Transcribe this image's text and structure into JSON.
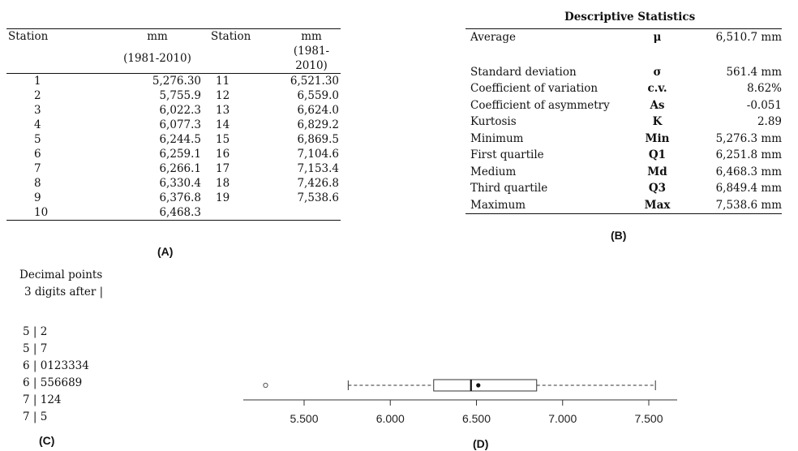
{
  "panel_a": {
    "label": "(A)",
    "headers": {
      "station": "Station",
      "mm": "mm",
      "period": "(1981-2010)"
    },
    "left_rows": [
      {
        "station": "1",
        "mm": "5,276.30"
      },
      {
        "station": "2",
        "mm": "5,755.9"
      },
      {
        "station": "3",
        "mm": "6,022.3"
      },
      {
        "station": "4",
        "mm": "6,077.3"
      },
      {
        "station": "5",
        "mm": "6,244.5"
      },
      {
        "station": "6",
        "mm": "6,259.1"
      },
      {
        "station": "7",
        "mm": "6,266.1"
      },
      {
        "station": "8",
        "mm": "6,330.4"
      },
      {
        "station": "9",
        "mm": "6,376.8"
      },
      {
        "station": "10",
        "mm": "6,468.3"
      }
    ],
    "right_rows": [
      {
        "station": "11",
        "mm": "6,521.30"
      },
      {
        "station": "12",
        "mm": "6,559.0"
      },
      {
        "station": "13",
        "mm": "6,624.0"
      },
      {
        "station": "14",
        "mm": "6,829.2"
      },
      {
        "station": "15",
        "mm": "6,869.5"
      },
      {
        "station": "16",
        "mm": "7,104.6"
      },
      {
        "station": "17",
        "mm": "7,153.4"
      },
      {
        "station": "18",
        "mm": "7,426.8"
      },
      {
        "station": "19",
        "mm": "7,538.6"
      },
      {
        "station": "",
        "mm": ""
      }
    ]
  },
  "panel_b": {
    "label": "(B)",
    "title": "Descriptive Statistics",
    "rows": [
      {
        "name": "Average",
        "symbol": "μ",
        "value": "6,510.7 mm"
      },
      {
        "name": "Standard deviation",
        "symbol": "σ",
        "value": "561.4 mm"
      },
      {
        "name": "Coefficient of variation",
        "symbol": "c.v.",
        "value": "8.62%"
      },
      {
        "name": "Coefficient of asymmetry",
        "symbol": "As",
        "value": "-0.051"
      },
      {
        "name": "Kurtosis",
        "symbol": "K",
        "value": "2.89"
      },
      {
        "name": "Minimum",
        "symbol": "Min",
        "value": "5,276.3 mm"
      },
      {
        "name": "First quartile",
        "symbol": "Q1",
        "value": "6,251.8 mm"
      },
      {
        "name": "Medium",
        "symbol": "Md",
        "value": "6,468.3 mm"
      },
      {
        "name": "Third quartile",
        "symbol": "Q3",
        "value": "6,849.4 mm"
      },
      {
        "name": "Maximum",
        "symbol": "Max",
        "value": "7,538.6 mm"
      }
    ]
  },
  "panel_c": {
    "label": "(C)",
    "note_line1": "Decimal points",
    "note_line2": "3 digits after |",
    "rows": [
      {
        "stem": "5",
        "leaves": "2"
      },
      {
        "stem": "5",
        "leaves": "7"
      },
      {
        "stem": "6",
        "leaves": "0123334"
      },
      {
        "stem": "6",
        "leaves": "556689"
      },
      {
        "stem": "7",
        "leaves": "124"
      },
      {
        "stem": "7",
        "leaves": "5"
      }
    ]
  },
  "panel_d": {
    "label": "(D)",
    "chart_data": {
      "type": "boxplot",
      "orientation": "horizontal",
      "outliers": [
        5276.3
      ],
      "whisker_low": 5755.9,
      "q1": 6251.8,
      "median": 6468.3,
      "mean": 6510.7,
      "q3": 6849.4,
      "whisker_high": 7538.6,
      "xlim": [
        5000,
        7600
      ],
      "ticks": [
        5500,
        6000,
        6500,
        7000,
        7500
      ],
      "tick_labels": [
        "5.500",
        "6.000",
        "6.500",
        "7.000",
        "7.500"
      ]
    }
  }
}
